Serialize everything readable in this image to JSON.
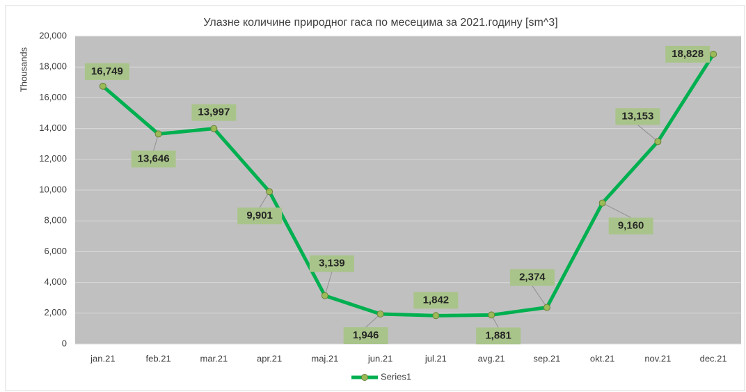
{
  "chart_data": {
    "type": "line",
    "title": "Улазне количине природног гаса по месецима за 2021.годину [sm^3]",
    "y_axis_label": "Thousands",
    "categories": [
      "jan.21",
      "feb.21",
      "mar.21",
      "apr.21",
      "maj.21",
      "jun.21",
      "jul.21",
      "avg.21",
      "sep.21",
      "okt.21",
      "nov.21",
      "dec.21"
    ],
    "series": [
      {
        "name": "Series1",
        "color": "#00b050",
        "values": [
          16749,
          13646,
          13997,
          9901,
          3139,
          1946,
          1842,
          1881,
          2374,
          9160,
          13153,
          18828
        ],
        "value_labels": [
          "16,749",
          "13,646",
          "13,997",
          "9,901",
          "3,139",
          "1,946",
          "1,842",
          "1,881",
          "2,374",
          "9,160",
          "13,153",
          "18,828"
        ]
      }
    ],
    "ylim": [
      0,
      20000
    ],
    "yticks": [
      0,
      {
        "value": 2000,
        "label": "2,000"
      },
      {
        "value": 4000,
        "label": "4,000"
      },
      {
        "value": 6000,
        "label": "6,000"
      },
      {
        "value": 8000,
        "label": "8,000"
      },
      {
        "value": 10000,
        "label": "10,000"
      },
      {
        "value": 12000,
        "label": "12,000"
      },
      {
        "value": 14000,
        "label": "14,000"
      },
      {
        "value": 16000,
        "label": "16,000"
      },
      {
        "value": 18000,
        "label": "18,000"
      },
      {
        "value": 20000,
        "label": "20,000"
      }
    ],
    "grid": true,
    "legend": "bottom"
  }
}
